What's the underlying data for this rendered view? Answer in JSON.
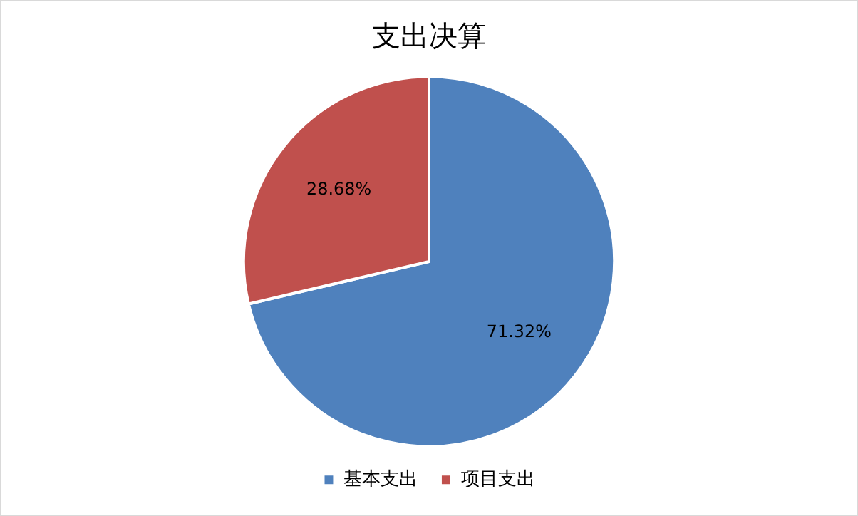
{
  "chart_data": {
    "type": "pie",
    "title": "支出决算",
    "categories": [
      "基本支出",
      "项目支出"
    ],
    "values": [
      71.32,
      28.68
    ],
    "colors": [
      "#4f81bd",
      "#c0504d"
    ],
    "value_labels": [
      "71.32%",
      "28.68%"
    ],
    "legend": "bottom"
  }
}
